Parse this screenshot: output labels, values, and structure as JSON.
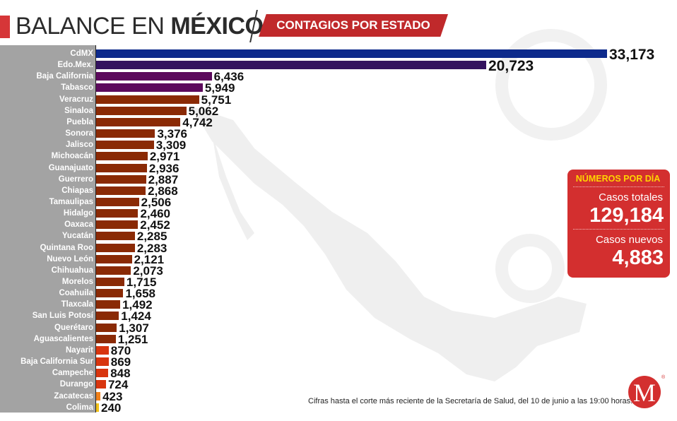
{
  "header": {
    "title_light": "BALANCE EN ",
    "title_bold": "MÉXICO",
    "subtitle": "CONTAGIOS POR ESTADO"
  },
  "stats_box": {
    "heading": "NÚMEROS POR DÍA",
    "total_label": "Casos totales",
    "total_value": "129,184",
    "new_label": "Casos nuevos",
    "new_value": "4,883"
  },
  "footnote": "Cifras hasta el corte más reciente de la Secretaría de Salud, del 10 de junio a las 19:00 horas.",
  "logo": {
    "letter": "M",
    "registered": "®"
  },
  "colors": {
    "accent_red": "#c0292b",
    "cdmx": "#0d2a8c",
    "edomex": "#33125e",
    "purple": "#5c0a5c",
    "brown": "#8a2a05",
    "red_orange": "#d8350e",
    "orange": "#f0801a",
    "yellow": "#f2c21a"
  },
  "chart_data": {
    "type": "bar",
    "orientation": "horizontal",
    "title": "CONTAGIOS POR ESTADO",
    "xlabel": "",
    "ylabel": "",
    "grid": false,
    "categories": [
      "CdMX",
      "Edo.Mex.",
      "Baja California",
      "Tabasco",
      "Veracruz",
      "Sinaloa",
      "Puebla",
      "Sonora",
      "Jalisco",
      "Michoacán",
      "Guanajuato",
      "Guerrero",
      "Chiapas",
      "Tamaulipas",
      "Hidalgo",
      "Oaxaca",
      "Yucatán",
      "Quintana Roo",
      "Nuevo León",
      "Chihuahua",
      "Morelos",
      "Coahuila",
      "Tlaxcala",
      "San Luis Potosí",
      "Querétaro",
      "Aguascalientes",
      "Nayarit",
      "Baja California Sur",
      "Campeche",
      "Durango",
      "Zacatecas",
      "Colima"
    ],
    "values": [
      33173,
      20723,
      6436,
      5949,
      5751,
      5062,
      4742,
      3376,
      3309,
      2971,
      2936,
      2887,
      2868,
      2506,
      2460,
      2452,
      2285,
      2283,
      2121,
      2073,
      1715,
      1658,
      1492,
      1424,
      1307,
      1251,
      870,
      869,
      848,
      724,
      423,
      240
    ],
    "labels": [
      "33,173",
      "20,723",
      "6,436",
      "5,949",
      "5,751",
      "5,062",
      "4,742",
      "3,376",
      "3,309",
      "2,971",
      "2,936",
      "2,887",
      "2,868",
      "2,506",
      "2,460",
      "2,452",
      "2,285",
      "2,283",
      "2,121",
      "2,073",
      "1,715",
      "1,658",
      "1,492",
      "1,424",
      "1,307",
      "1,251",
      "870",
      "869",
      "848",
      "724",
      "423",
      "240"
    ]
  }
}
